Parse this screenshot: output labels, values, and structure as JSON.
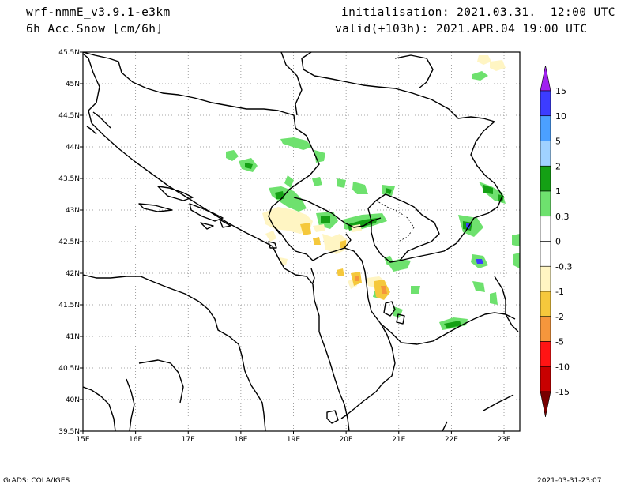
{
  "header": {
    "model": "wrf-nmmE_v3.9.1-e3km",
    "field": "6h Acc.Snow [cm/6h]",
    "init": "initialisation: 2021.03.31.  12:00 UTC",
    "valid": "valid(+103h): 2021.APR.04 19:00 UTC"
  },
  "footer": {
    "credit": "GrADS: COLA/IGES",
    "timestamp": "2021-03-31-23:07"
  },
  "map": {
    "lon_range": [
      15,
      23.3
    ],
    "lat_range": [
      39.5,
      45.5
    ],
    "lon_ticks": [
      "15E",
      "16E",
      "17E",
      "18E",
      "19E",
      "20E",
      "21E",
      "22E",
      "23E"
    ],
    "lat_ticks": [
      "39.5N",
      "40N",
      "40.5N",
      "41N",
      "41.5N",
      "42N",
      "42.5N",
      "43N",
      "43.5N",
      "44N",
      "44.5N",
      "45N",
      "45.5N"
    ],
    "grid": "dotted"
  },
  "colorbar": {
    "labels": [
      "15",
      "10",
      "5",
      "2",
      "1",
      "0.3",
      "0",
      "-0.3",
      "-1",
      "-2",
      "-5",
      "-10",
      "-15"
    ],
    "top_arrow": "#a020f0",
    "bottom_arrow": "#780000",
    "bins": [
      {
        "color": "#3c3cff"
      },
      {
        "color": "#4ba0ff"
      },
      {
        "color": "#a0d2ff"
      },
      {
        "color": "#14a014"
      },
      {
        "color": "#6ee16e"
      },
      {
        "color": "#ffffff"
      },
      {
        "color": "#ffffff"
      },
      {
        "color": "#fff5c3"
      },
      {
        "color": "#f5c83c"
      },
      {
        "color": "#f5963c"
      },
      {
        "color": "#ff1414"
      },
      {
        "color": "#c80000"
      }
    ]
  },
  "colors": {
    "snow_light": "#6ee16e",
    "snow_medium": "#14a014",
    "snow_heavy": "#3c3cff",
    "melt_light": "#fff5c3",
    "melt_medium": "#f5c83c",
    "melt_strong": "#f5963c"
  }
}
